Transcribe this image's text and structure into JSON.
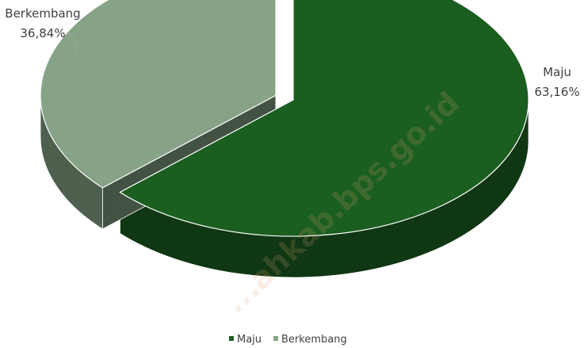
{
  "watermark": "...ahkab.bps.go.id",
  "chart_data": {
    "type": "pie",
    "style": "3d-exploded",
    "slices": [
      {
        "label": "Maju",
        "value": 63.16,
        "value_text": "63,16%",
        "color": "#1a5e20"
      },
      {
        "label": "Berkembang",
        "value": 36.84,
        "value_text": "36,84%",
        "color": "#87a387"
      }
    ],
    "legend": {
      "position": "bottom",
      "items": [
        {
          "label": "Maju",
          "color": "#1a5e20"
        },
        {
          "label": "Berkembang",
          "color": "#87a387"
        }
      ]
    }
  }
}
